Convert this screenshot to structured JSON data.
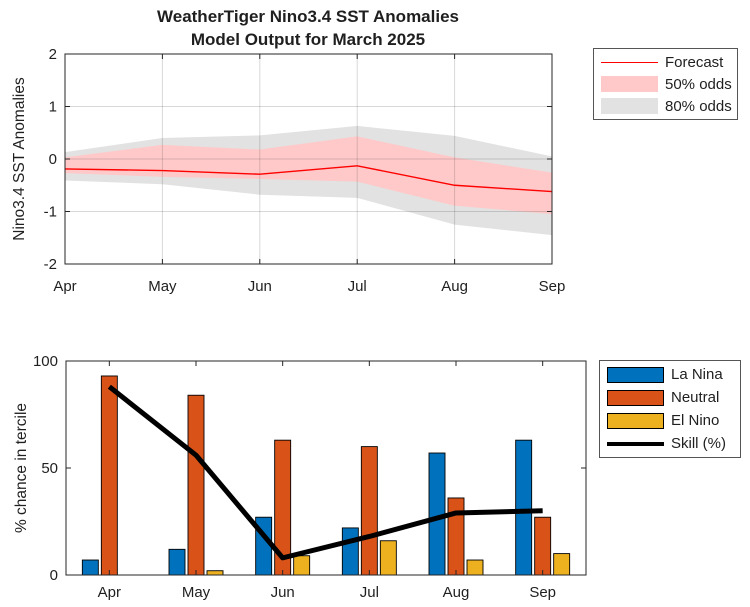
{
  "figure_title_line1": "WeatherTiger Nino3.4 SST Anomalies",
  "figure_title_line2": "Model Output for March 2025",
  "style": {
    "background": "#ffffff",
    "axis_color": "#262626",
    "text_color": "#1f1f1f",
    "grid_color": "rgba(38,38,38,0.18)",
    "legend_border": "#555555"
  },
  "chart_data": [
    {
      "type": "line",
      "title_line1": "WeatherTiger Nino3.4 SST Anomalies",
      "title_line2": "Model Output for March 2025",
      "ylabel": "Nino3.4 SST Anomalies",
      "x": [
        "Apr",
        "May",
        "Jun",
        "Jul",
        "Aug",
        "Sep"
      ],
      "ylim": [
        -2,
        2
      ],
      "yticks": [
        -2,
        -1,
        0,
        1,
        2
      ],
      "grid": true,
      "legend_position": "outside-top-right",
      "series": [
        {
          "name": "Forecast",
          "style": "line",
          "color": "#ff0000",
          "line_width": 1.4,
          "values": [
            -0.19,
            -0.22,
            -0.29,
            -0.13,
            -0.5,
            -0.62
          ]
        },
        {
          "name": "50% odds",
          "style": "band",
          "color": "#ffc9c9",
          "upper": [
            0.03,
            0.27,
            0.18,
            0.43,
            0.03,
            -0.26
          ],
          "lower": [
            -0.27,
            -0.34,
            -0.38,
            -0.43,
            -0.89,
            -1.05
          ]
        },
        {
          "name": "80% odds",
          "style": "band",
          "color": "#e2e2e2",
          "upper": [
            0.13,
            0.4,
            0.45,
            0.63,
            0.44,
            0.05
          ],
          "lower": [
            -0.41,
            -0.48,
            -0.68,
            -0.74,
            -1.25,
            -1.45
          ]
        }
      ]
    },
    {
      "type": "bar",
      "ylabel": "% chance in tercile",
      "categories": [
        "Apr",
        "May",
        "Jun",
        "Jul",
        "Aug",
        "Sep"
      ],
      "ylim": [
        0,
        100
      ],
      "yticks": [
        0,
        50,
        100
      ],
      "grid": false,
      "legend_position": "outside-top-right",
      "series": [
        {
          "name": "La Nina",
          "style": "bar",
          "color": "#0072bd",
          "values": [
            7,
            12,
            27,
            22,
            57,
            63
          ]
        },
        {
          "name": "Neutral",
          "style": "bar",
          "color": "#d95319",
          "values": [
            93,
            84,
            63,
            60,
            36,
            27
          ]
        },
        {
          "name": "El Nino",
          "style": "bar",
          "color": "#edb120",
          "values": [
            0,
            2,
            9,
            16,
            7,
            10
          ]
        },
        {
          "name": "Skill (%)",
          "style": "line",
          "color": "#000000",
          "line_width": 5,
          "values": [
            88,
            56,
            8,
            18,
            29,
            30
          ]
        }
      ]
    }
  ]
}
